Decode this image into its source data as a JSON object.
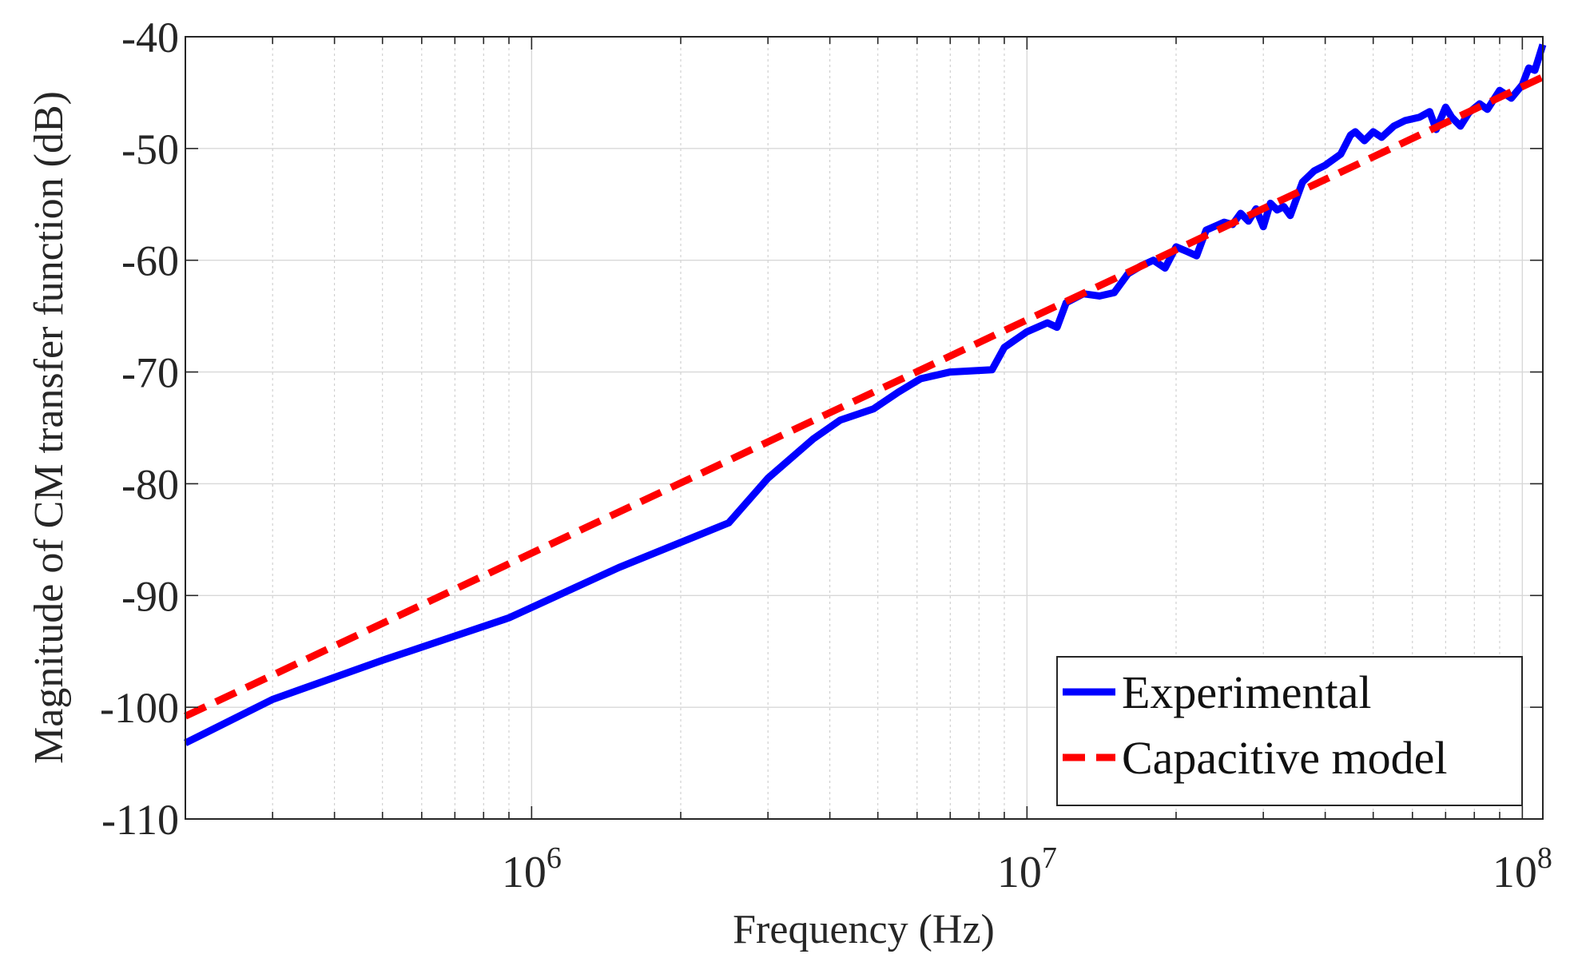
{
  "chart_data": {
    "type": "line",
    "title": "",
    "xlabel": "Frequency (Hz)",
    "ylabel": "Magnitude of CM transfer function (dB)",
    "xscale": "log",
    "xlim": [
      200000,
      110000000
    ],
    "ylim": [
      -110,
      -40
    ],
    "ytick_values": [
      -110,
      -100,
      -90,
      -80,
      -70,
      -60,
      -50,
      -40
    ],
    "ytick_labels": [
      "-110",
      "-100",
      "-90",
      "-80",
      "-70",
      "-60",
      "-50",
      "-40"
    ],
    "xtick_labels": [
      {
        "value": 1000000,
        "base": "10",
        "exponent": "6"
      },
      {
        "value": 10000000,
        "base": "10",
        "exponent": "7"
      },
      {
        "value": 100000000,
        "base": "10",
        "exponent": "8"
      }
    ],
    "grid": true,
    "legend_position": "bottom-right",
    "series": [
      {
        "name": "Experimental",
        "color": "#0000ff",
        "style": "solid",
        "x": [
          200000,
          300000,
          500000,
          900000,
          1500000,
          2500000,
          3000000,
          3700000,
          4200000,
          4900000,
          5500000,
          6100000,
          7000000,
          8500000,
          9000000,
          10000000,
          11000000,
          11500000,
          12000000,
          13000000,
          14000000,
          15000000,
          16000000,
          17000000,
          18000000,
          19000000,
          20000000,
          21000000,
          22000000,
          23000000,
          25000000,
          26000000,
          27000000,
          28000000,
          29000000,
          30000000,
          31000000,
          32000000,
          33000000,
          34000000,
          36000000,
          38000000,
          40000000,
          43000000,
          45000000,
          46000000,
          48000000,
          50000000,
          52000000,
          55000000,
          58000000,
          62000000,
          65000000,
          67000000,
          70000000,
          72000000,
          75000000,
          78000000,
          82000000,
          85000000,
          90000000,
          95000000,
          100000000,
          103000000,
          106000000,
          110000000
        ],
        "values": [
          -103.2,
          -99.3,
          -95.8,
          -92.0,
          -87.5,
          -83.5,
          -79.5,
          -76.0,
          -74.3,
          -73.3,
          -71.8,
          -70.6,
          -70.0,
          -69.8,
          -67.8,
          -66.4,
          -65.6,
          -66.0,
          -63.8,
          -63.0,
          -63.2,
          -62.9,
          -61.2,
          -60.5,
          -60.0,
          -60.7,
          -58.8,
          -59.2,
          -59.6,
          -57.3,
          -56.6,
          -56.8,
          -55.8,
          -56.5,
          -55.4,
          -57.0,
          -54.9,
          -55.5,
          -55.2,
          -56.0,
          -53.0,
          -52.0,
          -51.5,
          -50.5,
          -48.8,
          -48.5,
          -49.3,
          -48.5,
          -49.0,
          -48.0,
          -47.5,
          -47.2,
          -46.7,
          -48.3,
          -46.3,
          -47.2,
          -48.0,
          -46.8,
          -46.0,
          -46.5,
          -44.8,
          -45.5,
          -44.3,
          -42.8,
          -43.0,
          -40.7
        ]
      },
      {
        "name": "Capacitive model",
        "color": "#ff0000",
        "style": "dashed",
        "x": [
          200000,
          110000000
        ],
        "values": [
          -100.8,
          -43.6
        ]
      }
    ]
  }
}
